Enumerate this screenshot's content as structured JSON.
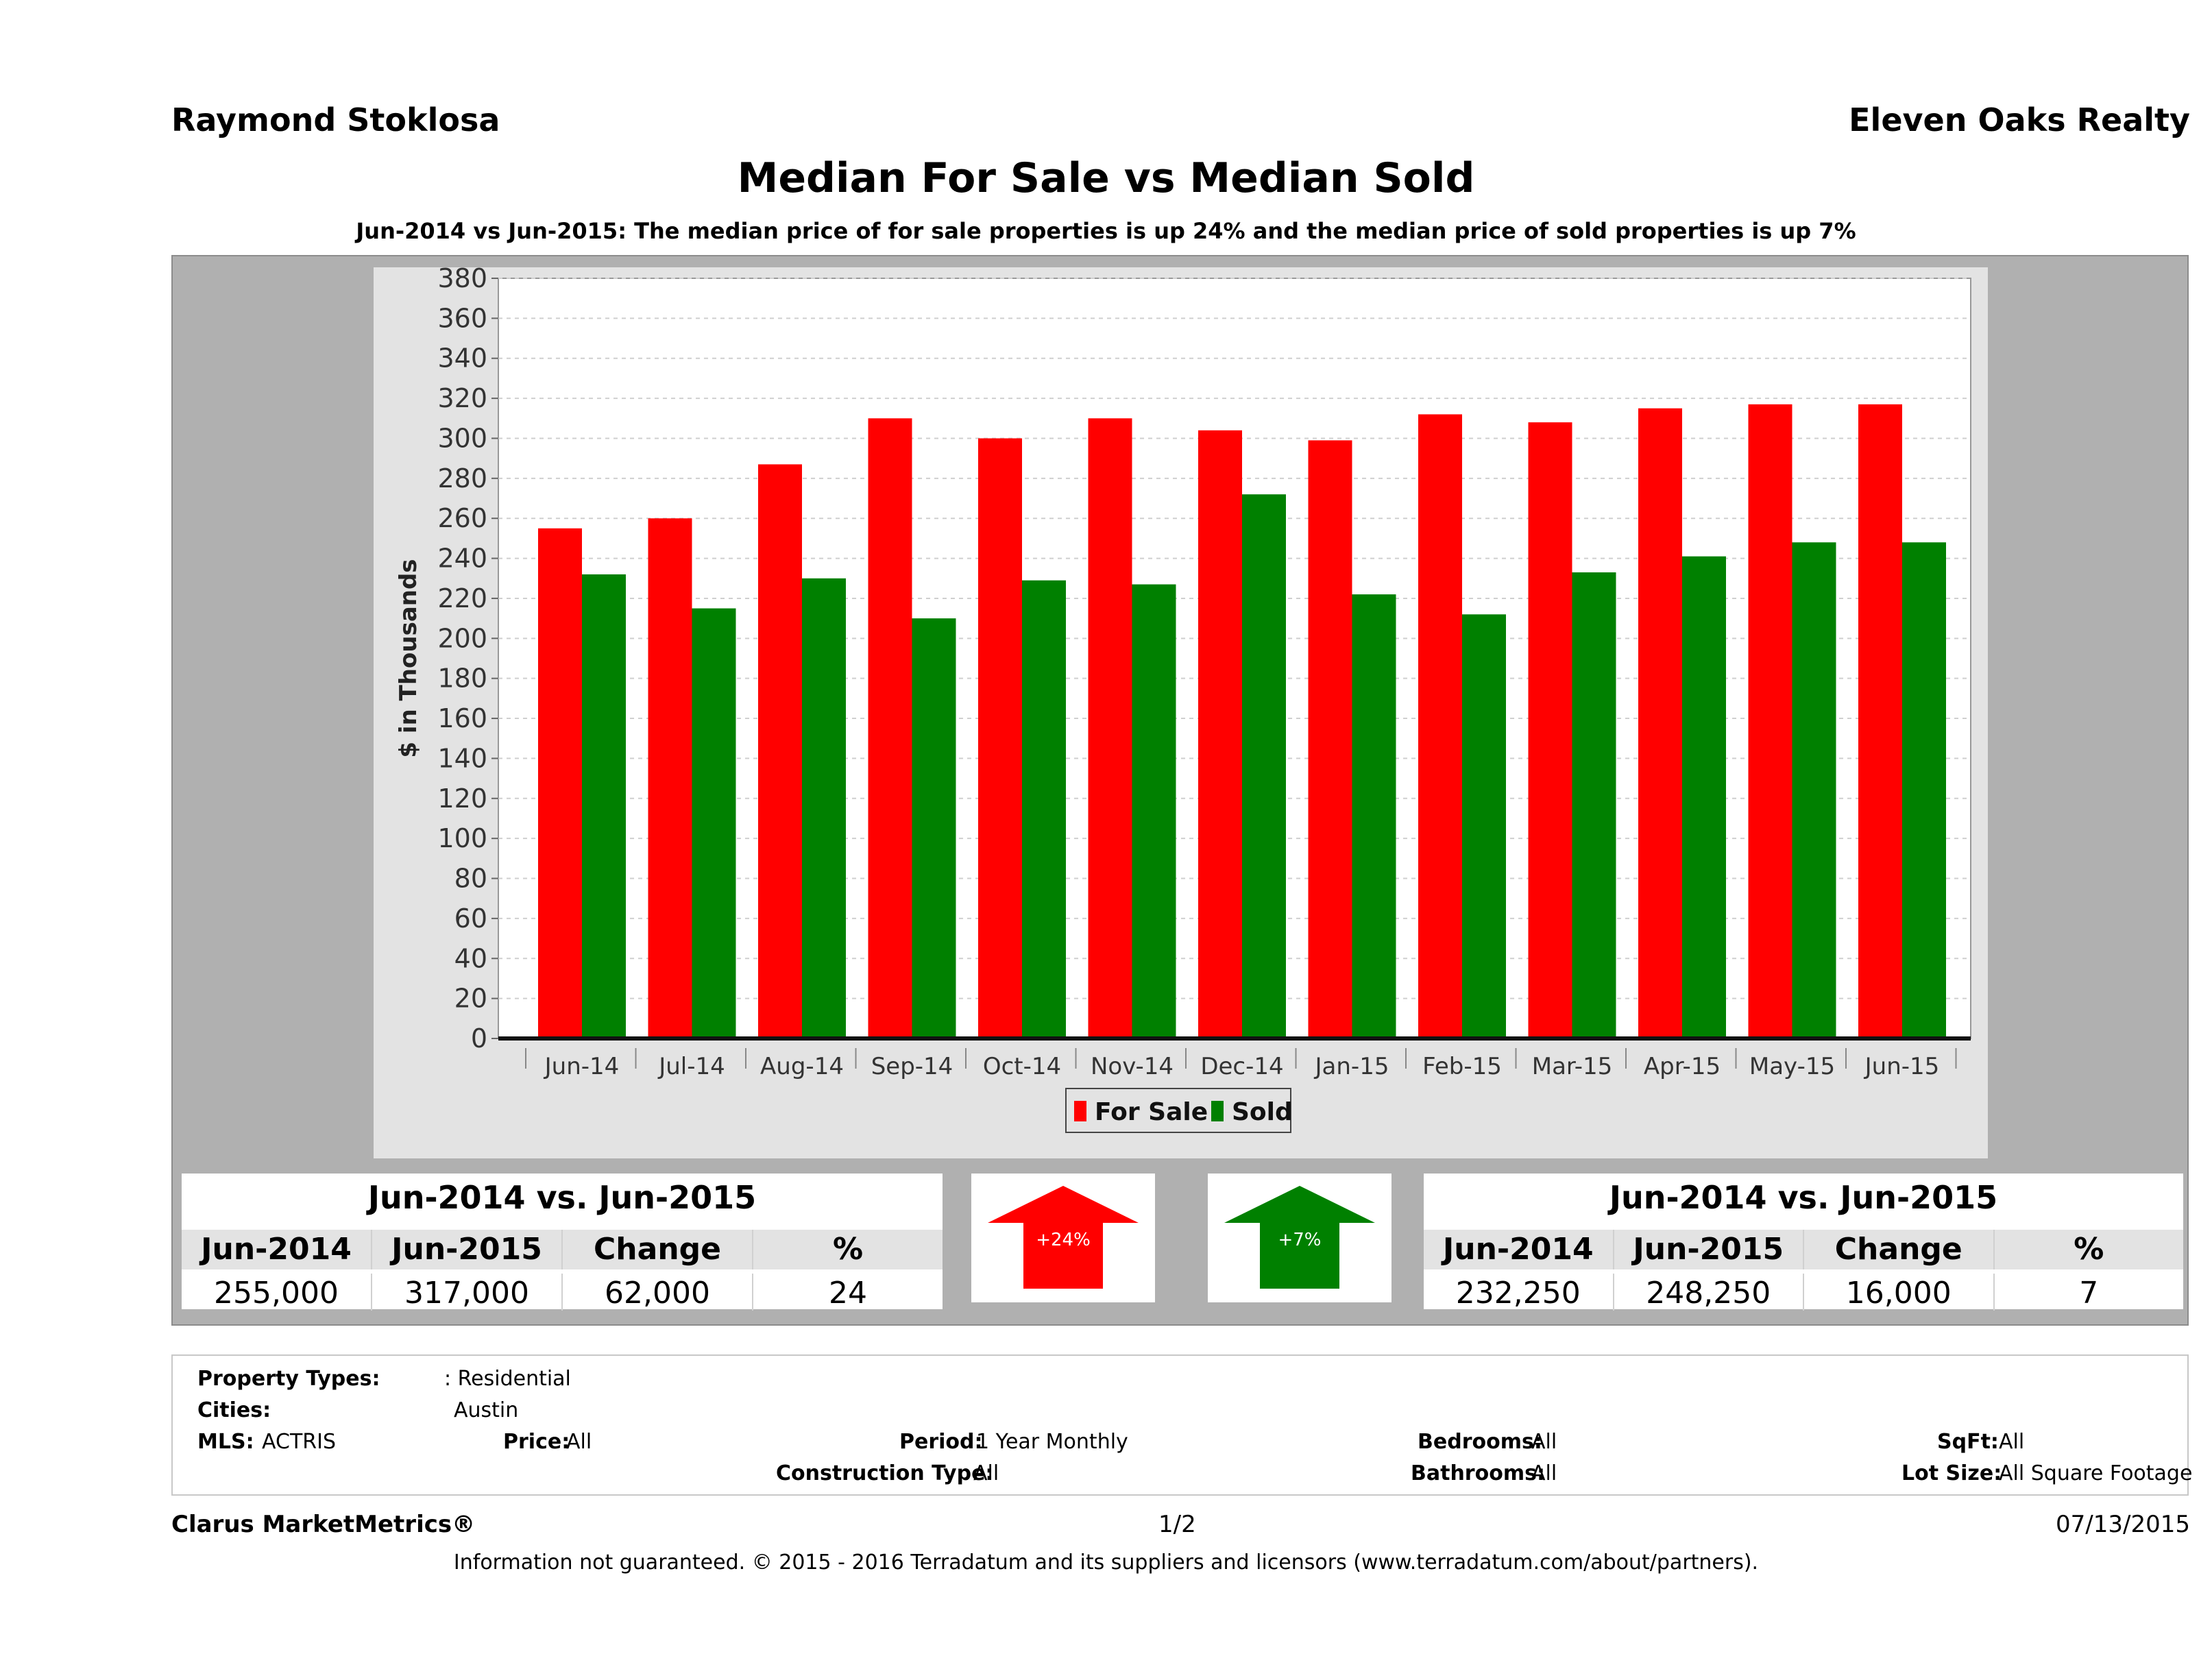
{
  "header": {
    "agent": "Raymond Stoklosa",
    "company": "Eleven Oaks Realty",
    "title": "Median For Sale vs Median Sold",
    "subtitle": "Jun-2014 vs Jun-2015: The median price of for sale properties is up 24% and the median price of sold properties is up 7%"
  },
  "chart_data": {
    "type": "bar",
    "categories": [
      "Jun-14",
      "Jul-14",
      "Aug-14",
      "Sep-14",
      "Oct-14",
      "Nov-14",
      "Dec-14",
      "Jan-15",
      "Feb-15",
      "Mar-15",
      "Apr-15",
      "May-15",
      "Jun-15"
    ],
    "series": [
      {
        "name": "For Sale",
        "color": "#ff0000",
        "values": [
          255,
          260,
          287,
          310,
          300,
          310,
          304,
          299,
          312,
          308,
          315,
          317,
          317
        ]
      },
      {
        "name": "Sold",
        "color": "#008000",
        "values": [
          232,
          215,
          230,
          210,
          229,
          227,
          272,
          222,
          212,
          233,
          241,
          248,
          248
        ]
      }
    ],
    "ylabel": "$ in Thousands",
    "xlabel": "",
    "ylim": [
      0,
      380
    ],
    "yticks": [
      0,
      20,
      40,
      60,
      80,
      100,
      120,
      140,
      160,
      180,
      200,
      220,
      240,
      260,
      280,
      300,
      320,
      340,
      360,
      380
    ],
    "grid": true,
    "legend_position": "bottom"
  },
  "stats": {
    "for_sale": {
      "title": "Jun-2014 vs. Jun-2015",
      "headers": [
        "Jun-2014",
        "Jun-2015",
        "Change",
        "%"
      ],
      "values": [
        "255,000",
        "317,000",
        "62,000",
        "24"
      ],
      "arrow_label": "+24%",
      "arrow_color": "#ff0000"
    },
    "sold": {
      "title": "Jun-2014 vs. Jun-2015",
      "headers": [
        "Jun-2014",
        "Jun-2015",
        "Change",
        "%"
      ],
      "values": [
        "232,250",
        "248,250",
        "16,000",
        "7"
      ],
      "arrow_label": "+7%",
      "arrow_color": "#008000"
    }
  },
  "criteria": {
    "property_types_label": "Property Types:",
    "property_types_value": ": Residential",
    "cities_label": "Cities:",
    "cities_value": "Austin",
    "mls_label": "MLS:",
    "mls_value": "ACTRIS",
    "price_label": "Price:",
    "price_value": "All",
    "period_label": "Period:",
    "period_value": "1 Year Monthly",
    "bedrooms_label": "Bedrooms:",
    "bedrooms_value": "All",
    "sqft_label": "SqFt:",
    "sqft_value": "All",
    "construction_label": "Construction Type:",
    "construction_value": "All",
    "bathrooms_label": "Bathrooms:",
    "bathrooms_value": "All",
    "lot_label": "Lot Size:",
    "lot_value": "All Square Footage"
  },
  "footer": {
    "brand": "Clarus MarketMetrics®",
    "page": "1/2",
    "date": "07/13/2015",
    "disclaimer": "Information not guaranteed. © 2015 - 2016 Terradatum and its suppliers and licensors (www.terradatum.com/about/partners)."
  }
}
